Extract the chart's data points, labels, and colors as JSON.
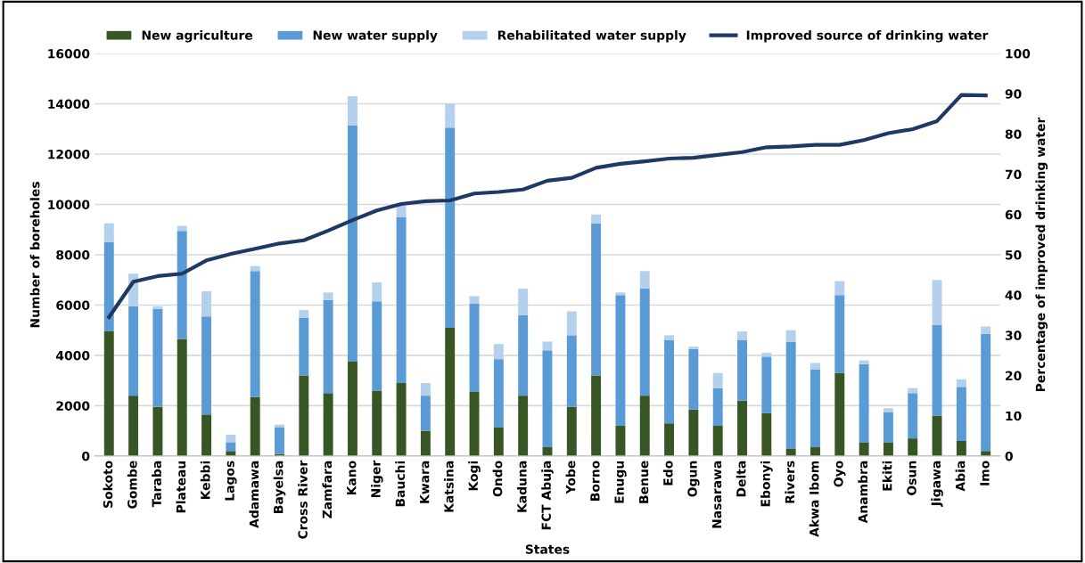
{
  "chart_data": {
    "type": "bar",
    "stacked": true,
    "xlabel": "States",
    "ylabel": "Number of boreholes",
    "y2label": "Percentage of improved drinking water",
    "categories": [
      "Sokoto",
      "Gombe",
      "Taraba",
      "Plateau",
      "Kebbi",
      "Lagos",
      "Adamawa",
      "Bayelsa",
      "Cross River",
      "Zamfara",
      "Kano",
      "Niger",
      "Bauchi",
      "Kwara",
      "Katsina",
      "Kogi",
      "Ondo",
      "Kaduna",
      "FCT Abuja",
      "Yobe",
      "Borno",
      "Enugu",
      "Benue",
      "Edo",
      "Ogun",
      "Nasarawa",
      "Delta",
      "Ebonyi",
      "Rivers",
      "Akwa Ibom",
      "Oyo",
      "Anambra",
      "Ekiti",
      "Osun",
      "Jigawa",
      "Abia",
      "Imo"
    ],
    "series": [
      {
        "name": "New agriculture",
        "color": "#375623",
        "values": [
          4950,
          2400,
          1950,
          4650,
          1650,
          200,
          2350,
          80,
          3200,
          2500,
          3750,
          2600,
          2900,
          1000,
          5100,
          2550,
          1150,
          2400,
          350,
          1950,
          3200,
          1200,
          2400,
          1300,
          1850,
          1200,
          2200,
          1700,
          300,
          350,
          3300,
          550,
          550,
          700,
          1600,
          600,
          200
        ]
      },
      {
        "name": "New water supply",
        "color": "#5b9bd5",
        "values": [
          3550,
          3550,
          3900,
          4300,
          3900,
          350,
          5000,
          1070,
          2300,
          3700,
          9400,
          3550,
          6600,
          1400,
          7950,
          3500,
          2700,
          3200,
          3850,
          2850,
          6050,
          5200,
          4250,
          3300,
          2400,
          1500,
          2400,
          2250,
          4250,
          3100,
          3100,
          3100,
          1200,
          1800,
          3600,
          2150,
          4650
        ]
      },
      {
        "name": "Rehabilitated water supply",
        "color": "#b4d0ec",
        "values": [
          750,
          1300,
          100,
          200,
          1000,
          300,
          200,
          100,
          300,
          300,
          1150,
          750,
          450,
          500,
          950,
          300,
          600,
          1050,
          350,
          950,
          350,
          100,
          700,
          200,
          100,
          600,
          350,
          150,
          450,
          250,
          550,
          150,
          150,
          200,
          1800,
          300,
          300
        ]
      },
      {
        "name": "Improved source of drinking water",
        "type": "line",
        "axis": "y2",
        "color": "#1f3864",
        "values": [
          34.5,
          43.3,
          44.7,
          45.3,
          48.6,
          50.2,
          51.5,
          52.8,
          53.6,
          56,
          58.6,
          61,
          62.6,
          63.3,
          63.5,
          65.2,
          65.6,
          66.2,
          68.4,
          69.1,
          71.6,
          72.6,
          73.2,
          73.9,
          74.1,
          74.8,
          75.5,
          76.7,
          76.9,
          77.3,
          77.3,
          78.5,
          80.2,
          81.2,
          83.2,
          89.7,
          89.6
        ]
      }
    ],
    "ylim": [
      0,
      16000
    ],
    "yticks": [
      0,
      2000,
      4000,
      6000,
      8000,
      10000,
      12000,
      14000,
      16000
    ],
    "y2lim": [
      0,
      100
    ],
    "y2ticks": [
      0,
      10,
      20,
      30,
      40,
      50,
      60,
      70,
      80,
      90,
      100
    ],
    "grid": "y",
    "legend": "top"
  }
}
